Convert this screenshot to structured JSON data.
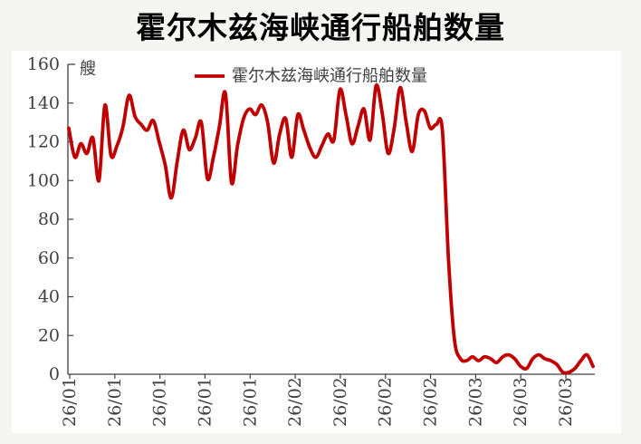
{
  "page": {
    "background_color": "#f5f5f1",
    "card_color": "#ffffff"
  },
  "chart_data": {
    "type": "line",
    "title": "霍尔木兹海峡通行船舶数量",
    "unit_label": "艘",
    "legend_position": "top-center",
    "grid": "off",
    "axis_color": "#3f3f3f",
    "ylim": [
      0,
      160
    ],
    "y_ticks": [
      0,
      20,
      40,
      60,
      80,
      100,
      120,
      140,
      160
    ],
    "x_tick_labels": [
      "26/01",
      "26/01",
      "26/01",
      "26/01",
      "26/01",
      "26/02",
      "26/02",
      "26/02",
      "26/02",
      "26/03",
      "26/03",
      "26/03"
    ],
    "series": [
      {
        "name": "霍尔木兹海峡通行船舶数量",
        "color": "#c00000",
        "values": [
          127,
          112,
          119,
          114,
          122,
          100,
          139,
          113,
          118,
          128,
          144,
          133,
          129,
          126,
          131,
          120,
          108,
          91,
          110,
          126,
          116,
          122,
          130,
          101,
          112,
          128,
          145,
          99,
          118,
          132,
          137,
          134,
          139,
          130,
          109,
          124,
          132,
          112,
          134,
          126,
          117,
          112,
          118,
          124,
          121,
          147,
          134,
          119,
          128,
          137,
          121,
          149,
          135,
          114,
          127,
          148,
          130,
          115,
          134,
          136,
          127,
          129,
          126,
          60,
          18,
          8,
          7,
          9,
          7,
          9,
          8,
          6,
          9,
          10,
          8,
          4,
          3,
          8,
          10,
          8,
          7,
          5,
          1,
          1,
          3,
          7,
          10,
          4
        ]
      }
    ]
  }
}
